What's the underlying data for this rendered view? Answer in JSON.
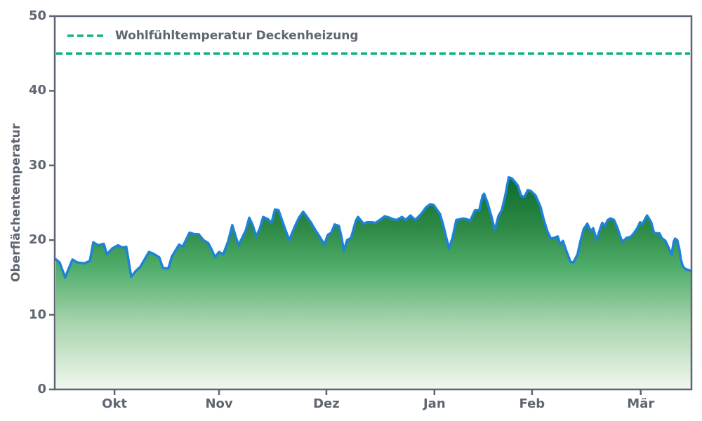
{
  "chart_data": {
    "type": "area",
    "title": "",
    "xlabel": "",
    "ylabel": "Oberflächentemperatur",
    "ylim": [
      0,
      50
    ],
    "yticks": [
      0,
      10,
      20,
      30,
      40,
      50
    ],
    "xlim": [
      0,
      183.3
    ],
    "xticks": [
      {
        "pos": 17.2,
        "label": "Okt"
      },
      {
        "pos": 47.3,
        "label": "Nov"
      },
      {
        "pos": 78.2,
        "label": "Dez"
      },
      {
        "pos": 109.3,
        "label": "Jan"
      },
      {
        "pos": 137.4,
        "label": "Feb"
      },
      {
        "pos": 168.7,
        "label": "Mär"
      }
    ],
    "grid": false,
    "legend_position": "upper-left",
    "axis_color": "#5c6571",
    "text_color": "#5f6670",
    "reference_line": {
      "value": 45,
      "label": "Wohlfühltemperatur Deckenheizung",
      "color": "#0fb283",
      "dash": [
        9,
        5
      ],
      "width": 3.5
    },
    "fill_gradient": {
      "top_value": 28.6,
      "stops": [
        {
          "offset": 0.0,
          "color": "#0a6b2d"
        },
        {
          "offset": 0.25,
          "color": "#2e8a46"
        },
        {
          "offset": 0.43,
          "color": "#4fae6b"
        },
        {
          "offset": 0.69,
          "color": "#a8d4ae"
        },
        {
          "offset": 1.0,
          "color": "#f1f7ee"
        }
      ]
    },
    "series": [
      {
        "name": "Oberflächentemperatur",
        "line_color": "#1e82d8",
        "line_width": 3.5,
        "points": [
          [
            0.4,
            17.4
          ],
          [
            1.4,
            17.0
          ],
          [
            3.0,
            15.0
          ],
          [
            5.1,
            17.4
          ],
          [
            6.5,
            17.0
          ],
          [
            8.5,
            16.9
          ],
          [
            10.1,
            17.2
          ],
          [
            11.1,
            19.7
          ],
          [
            12.5,
            19.3
          ],
          [
            14.1,
            19.5
          ],
          [
            15.0,
            18.1
          ],
          [
            16.6,
            18.9
          ],
          [
            18.2,
            19.3
          ],
          [
            19.4,
            19.0
          ],
          [
            20.6,
            19.1
          ],
          [
            22.0,
            15.1
          ],
          [
            23.4,
            15.9
          ],
          [
            24.6,
            16.4
          ],
          [
            27.1,
            18.4
          ],
          [
            28.3,
            18.2
          ],
          [
            30.1,
            17.7
          ],
          [
            31.1,
            16.3
          ],
          [
            32.7,
            16.2
          ],
          [
            33.7,
            17.8
          ],
          [
            35.8,
            19.4
          ],
          [
            36.8,
            19.1
          ],
          [
            38.8,
            21.0
          ],
          [
            40.2,
            20.8
          ],
          [
            41.4,
            20.8
          ],
          [
            42.8,
            20.0
          ],
          [
            44.2,
            19.6
          ],
          [
            45.3,
            18.6
          ],
          [
            46.1,
            17.7
          ],
          [
            47.3,
            18.4
          ],
          [
            48.5,
            18.1
          ],
          [
            49.9,
            19.8
          ],
          [
            51.1,
            22.0
          ],
          [
            52.0,
            20.6
          ],
          [
            52.9,
            19.3
          ],
          [
            55.0,
            21.3
          ],
          [
            56.0,
            23.0
          ],
          [
            57.0,
            22.0
          ],
          [
            58.0,
            20.5
          ],
          [
            59.0,
            21.5
          ],
          [
            60.0,
            23.1
          ],
          [
            61.4,
            22.8
          ],
          [
            62.4,
            22.3
          ],
          [
            63.4,
            24.1
          ],
          [
            64.4,
            24.0
          ],
          [
            65.1,
            23.1
          ],
          [
            66.3,
            21.5
          ],
          [
            67.5,
            20.0
          ],
          [
            69.1,
            21.8
          ],
          [
            70.3,
            23.0
          ],
          [
            71.5,
            23.8
          ],
          [
            72.5,
            23.2
          ],
          [
            73.7,
            22.4
          ],
          [
            75.2,
            21.2
          ],
          [
            76.2,
            20.5
          ],
          [
            77.6,
            19.4
          ],
          [
            78.6,
            20.7
          ],
          [
            79.6,
            21.0
          ],
          [
            80.6,
            22.1
          ],
          [
            81.8,
            21.9
          ],
          [
            82.6,
            20.3
          ],
          [
            83.2,
            18.6
          ],
          [
            84.2,
            20.0
          ],
          [
            85.3,
            20.3
          ],
          [
            86.7,
            22.6
          ],
          [
            87.3,
            23.1
          ],
          [
            88.9,
            22.2
          ],
          [
            89.9,
            22.4
          ],
          [
            91.3,
            22.4
          ],
          [
            92.3,
            22.3
          ],
          [
            93.3,
            22.6
          ],
          [
            95.0,
            23.2
          ],
          [
            96.4,
            23.0
          ],
          [
            97.4,
            22.8
          ],
          [
            98.4,
            22.7
          ],
          [
            100.0,
            23.1
          ],
          [
            101.0,
            22.7
          ],
          [
            102.4,
            23.3
          ],
          [
            103.8,
            22.7
          ],
          [
            105.5,
            23.5
          ],
          [
            106.9,
            24.4
          ],
          [
            108.1,
            24.8
          ],
          [
            109.1,
            24.7
          ],
          [
            110.9,
            23.5
          ],
          [
            111.9,
            21.9
          ],
          [
            112.5,
            20.7
          ],
          [
            113.5,
            18.9
          ],
          [
            114.5,
            20.3
          ],
          [
            115.6,
            22.7
          ],
          [
            116.6,
            22.8
          ],
          [
            117.6,
            22.9
          ],
          [
            118.6,
            22.8
          ],
          [
            119.6,
            22.6
          ],
          [
            121.0,
            24.0
          ],
          [
            122.2,
            24.0
          ],
          [
            123.2,
            26.0
          ],
          [
            123.6,
            26.2
          ],
          [
            124.6,
            25.0
          ],
          [
            125.7,
            23.2
          ],
          [
            126.7,
            21.3
          ],
          [
            127.7,
            23.2
          ],
          [
            128.7,
            24.0
          ],
          [
            129.7,
            26.0
          ],
          [
            130.7,
            28.4
          ],
          [
            131.5,
            28.3
          ],
          [
            132.3,
            27.9
          ],
          [
            133.3,
            27.3
          ],
          [
            134.3,
            25.9
          ],
          [
            135.2,
            25.8
          ],
          [
            136.2,
            26.7
          ],
          [
            137.0,
            26.6
          ],
          [
            138.4,
            26.0
          ],
          [
            139.8,
            24.5
          ],
          [
            140.8,
            22.7
          ],
          [
            141.8,
            21.2
          ],
          [
            142.8,
            20.2
          ],
          [
            143.8,
            20.3
          ],
          [
            144.8,
            20.5
          ],
          [
            145.5,
            19.4
          ],
          [
            146.3,
            19.9
          ],
          [
            147.3,
            18.5
          ],
          [
            148.5,
            17.1
          ],
          [
            149.3,
            17.0
          ],
          [
            150.5,
            18.1
          ],
          [
            151.3,
            19.8
          ],
          [
            152.3,
            21.5
          ],
          [
            153.3,
            22.2
          ],
          [
            154.3,
            21.2
          ],
          [
            155.0,
            21.6
          ],
          [
            156.0,
            20.0
          ],
          [
            157.0,
            21.5
          ],
          [
            157.6,
            22.3
          ],
          [
            158.4,
            21.9
          ],
          [
            159.2,
            22.7
          ],
          [
            160.0,
            22.9
          ],
          [
            161.0,
            22.7
          ],
          [
            162.0,
            21.6
          ],
          [
            163.0,
            20.2
          ],
          [
            163.6,
            19.8
          ],
          [
            164.6,
            20.3
          ],
          [
            165.7,
            20.4
          ],
          [
            166.5,
            20.8
          ],
          [
            167.7,
            21.6
          ],
          [
            168.5,
            22.4
          ],
          [
            169.1,
            22.1
          ],
          [
            170.5,
            23.3
          ],
          [
            171.7,
            22.4
          ],
          [
            172.5,
            21.0
          ],
          [
            173.5,
            20.9
          ],
          [
            174.1,
            20.9
          ],
          [
            174.7,
            20.3
          ],
          [
            175.8,
            19.9
          ],
          [
            176.6,
            19.1
          ],
          [
            177.6,
            18.1
          ],
          [
            178.2,
            19.8
          ],
          [
            178.6,
            20.2
          ],
          [
            179.2,
            20.0
          ],
          [
            179.8,
            18.8
          ],
          [
            180.2,
            17.5
          ],
          [
            180.8,
            16.5
          ],
          [
            181.6,
            16.1
          ],
          [
            182.6,
            16.0
          ],
          [
            183.2,
            15.8
          ]
        ]
      }
    ]
  }
}
